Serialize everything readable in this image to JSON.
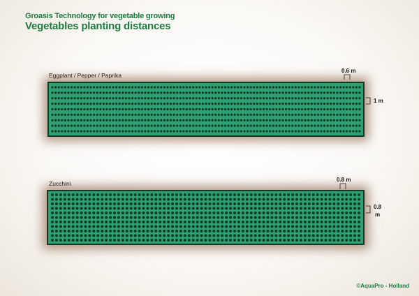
{
  "header": {
    "subtitle": "Groasis Technology for vegetable growing",
    "title": "Vegetables planting distances"
  },
  "beds": [
    {
      "label": "Eggplant / Pepper / Paprika",
      "row_spacing": "0.6 m",
      "plant_spacing": "1 m",
      "rows": 9,
      "columns": 97,
      "dot_color": "#0f3d24"
    },
    {
      "label": "Zucchini",
      "row_spacing": "0.8 m",
      "plant_spacing_line1": "0.8",
      "plant_spacing_line2": "m",
      "rows": 11,
      "columns": 75,
      "dot_color": "#0f3d24"
    }
  ],
  "footer": {
    "credit": "©AquaPro - Holland"
  },
  "colors": {
    "bed_fill": "#2f9f74",
    "bed_border": "#103a26",
    "heading": "#1f7a3e"
  }
}
